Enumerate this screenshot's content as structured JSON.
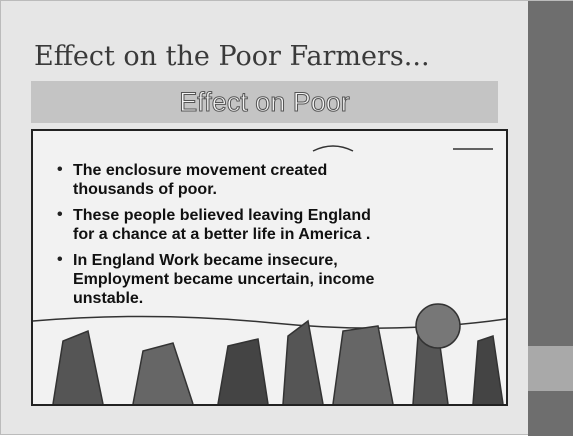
{
  "header": {
    "title": "Effect on the Poor Farmers...",
    "subtitle": "Effect on Poor"
  },
  "bullets": [
    {
      "lines": [
        "The enclosure movement created",
        "thousands of poor."
      ]
    },
    {
      "lines": [
        "These people believed leaving England",
        "for a chance at a better life in America ."
      ]
    },
    {
      "lines": [
        "In England Work became insecure,",
        "Employment became uncertain, income",
        "unstable."
      ]
    }
  ]
}
